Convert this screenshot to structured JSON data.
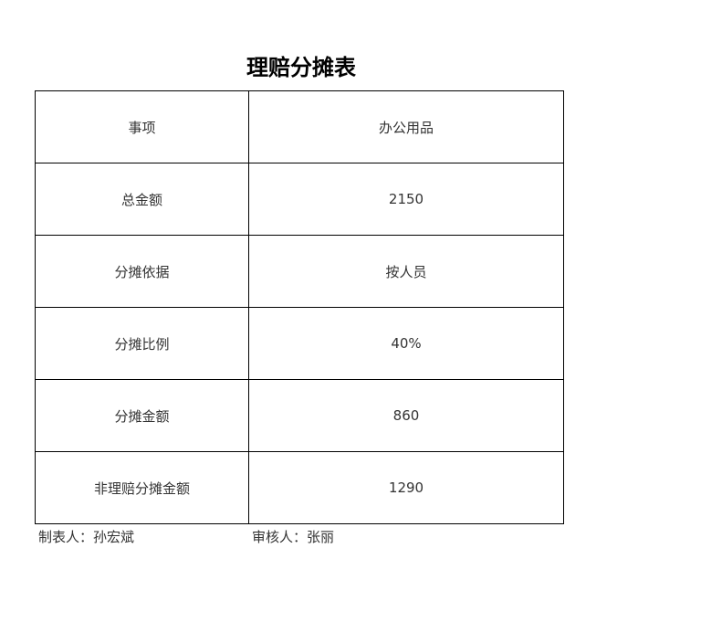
{
  "title": "理赔分摊表",
  "rows": [
    {
      "label": "事项",
      "value": "办公用品"
    },
    {
      "label": "总金额",
      "value": "2150"
    },
    {
      "label": "分摊依据",
      "value": "按人员"
    },
    {
      "label": "分摊比例",
      "value": "40%"
    },
    {
      "label": "分摊金额",
      "value": "860"
    },
    {
      "label": "非理赔分摊金额",
      "value": "1290"
    }
  ],
  "footer": {
    "preparer": "制表人：孙宏斌",
    "reviewer": "审核人：张丽"
  }
}
